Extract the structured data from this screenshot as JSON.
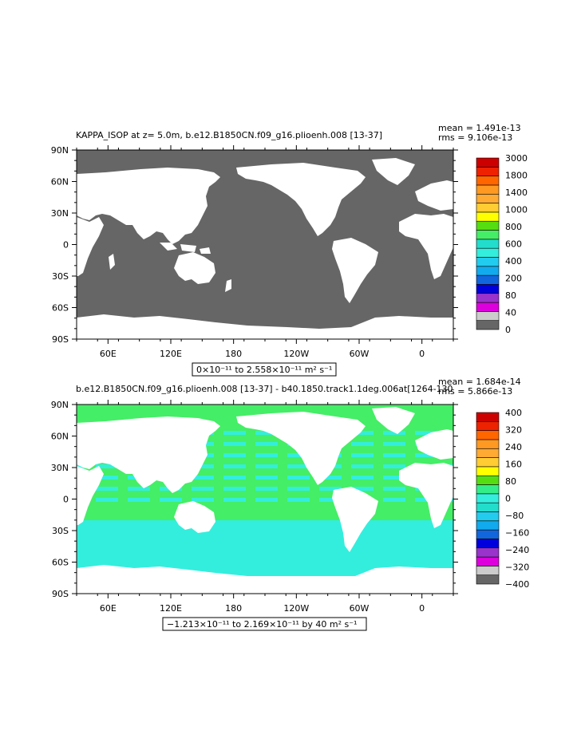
{
  "colors": {
    "land": "#ffffff",
    "top_palette": [
      "#666666",
      "#cccccc",
      "#dd00dd",
      "#9933cc",
      "#0000dd",
      "#1166dd",
      "#11aaee",
      "#22ccee",
      "#33eedd",
      "#22ddcc",
      "#44ee66",
      "#55dd11",
      "#ffff00",
      "#ffcc33",
      "#ffaa33",
      "#ff9922",
      "#ff6600",
      "#ee2200",
      "#cc0000"
    ],
    "bottom_palette": [
      "#666666",
      "#cccccc",
      "#dd00dd",
      "#9933cc",
      "#0000dd",
      "#1166dd",
      "#11aaee",
      "#22ccee",
      "#22ddcc",
      "#33eedd",
      "#33ee88",
      "#55dd11",
      "#ffff00",
      "#ffcc33",
      "#ffaa33",
      "#ff9922",
      "#ff6600",
      "#ee2200",
      "#cc0000"
    ]
  },
  "chart_data": [
    {
      "type": "heatmap",
      "title": "KAPPA_ISOP at z=    5.0m, b.e12.B1850CN.f09_g16.plioenh.008  [13-37]",
      "stats_mean": "mean = 1.491e-13",
      "stats_rms": "rms = 9.106e-13",
      "range_label": "0×10⁻¹¹ to 2.558×10⁻¹¹ m² s⁻¹",
      "ocean_color": "#666666",
      "y_ticks": [
        "90N",
        "60N",
        "30N",
        "0",
        "30S",
        "60S",
        "90S"
      ],
      "x_ticks": [
        "60E",
        "120E",
        "180",
        "120W",
        "60W",
        "0"
      ],
      "colorbar_labels": [
        "3000",
        "1800",
        "1400",
        "1000",
        "800",
        "600",
        "400",
        "200",
        "80",
        "40",
        "0"
      ]
    },
    {
      "type": "heatmap",
      "title": "b.e12.B1850CN.f09_g16.plioenh.008  [13-37]  - b40.1850.track1.1deg.006at[1264-130",
      "stats_mean": "mean = 1.684e-14",
      "stats_rms": "rms = 5.866e-13",
      "range_label": "−1.213×10⁻¹¹ to 2.169×10⁻¹¹ by 40 m² s⁻¹",
      "y_ticks": [
        "90N",
        "60N",
        "30N",
        "0",
        "30S",
        "60S",
        "90S"
      ],
      "x_ticks": [
        "60E",
        "120E",
        "180",
        "120W",
        "60W",
        "0"
      ],
      "colorbar_labels": [
        "400",
        "320",
        "240",
        "160",
        "80",
        "0",
        "−80",
        "−160",
        "−240",
        "−320",
        "−400"
      ]
    }
  ]
}
